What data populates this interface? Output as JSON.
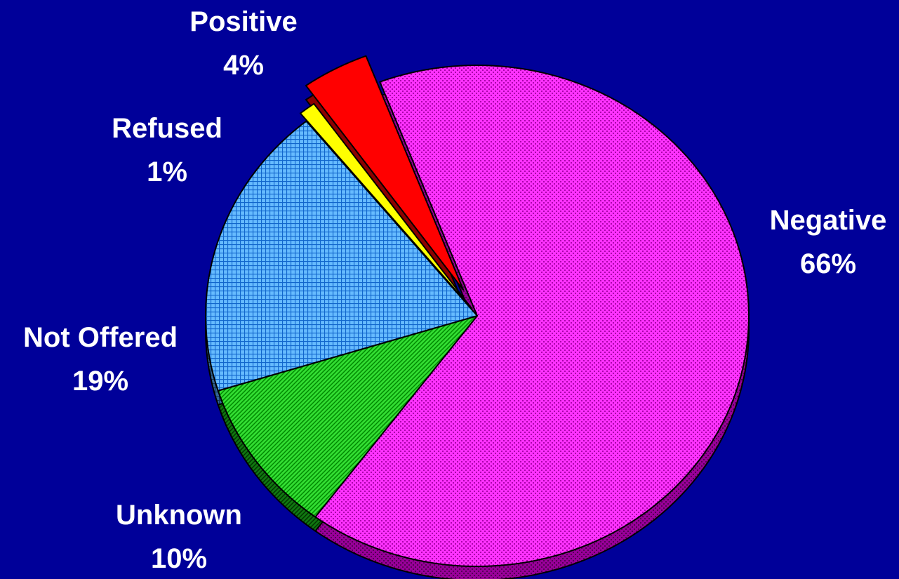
{
  "chart_data": {
    "type": "pie",
    "title": "",
    "style": "3d-exploded",
    "background": "#000099",
    "slices": [
      {
        "name": "Negative",
        "value": 66,
        "label": "66%",
        "color": "#ff33ff",
        "pattern": "dots"
      },
      {
        "name": "Unknown",
        "value": 10,
        "label": "10%",
        "color": "#33dd33",
        "pattern": "diagonal"
      },
      {
        "name": "Not Offered",
        "value": 19,
        "label": "19%",
        "color": "#55aaff",
        "pattern": "grid"
      },
      {
        "name": "Refused",
        "value": 1,
        "label": "1%",
        "color": "#ffff00",
        "pattern": "solid"
      },
      {
        "name": "Positive",
        "value": 4,
        "label": "4%",
        "color": "#ff0000",
        "pattern": "solid"
      }
    ]
  }
}
